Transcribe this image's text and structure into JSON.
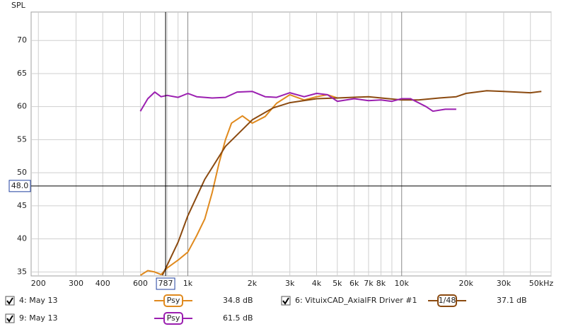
{
  "chart_data": {
    "type": "line",
    "y_label": "SPL",
    "log_x": true,
    "grid": true,
    "xlim": [
      185,
      50000
    ],
    "ylim": [
      34.4,
      74.3
    ],
    "yticks": [
      35,
      40,
      45,
      50,
      55,
      60,
      65,
      70
    ],
    "xticks": [
      200,
      300,
      400,
      600,
      {
        "value": 1000,
        "label": "1k"
      },
      {
        "value": 2000,
        "label": "2k"
      },
      {
        "value": 3000,
        "label": "3k"
      },
      {
        "value": 4000,
        "label": "4k"
      },
      {
        "value": 5000,
        "label": "5k"
      },
      {
        "value": 6000,
        "label": "6k"
      },
      {
        "value": 7000,
        "label": "7k"
      },
      {
        "value": 8000,
        "label": "8k"
      },
      {
        "value": 10000,
        "label": "10k"
      },
      {
        "value": 20000,
        "label": "20k"
      },
      {
        "value": 30000,
        "label": "30k"
      },
      {
        "value": 50000,
        "label": "50kHz"
      }
    ],
    "x_minor_grid": [
      500,
      700,
      800,
      900,
      9000,
      40000
    ],
    "cursor": {
      "x": 787,
      "y": {
        "value": 48,
        "label": "48.0"
      }
    },
    "series": [
      {
        "name": "4: May 13",
        "color": "#e08a1e",
        "smoothing": "Psy",
        "readout": "34.8 dB",
        "x": [
          600,
          650,
          700,
          750,
          800,
          900,
          1000,
          1100,
          1200,
          1300,
          1400,
          1500,
          1600,
          1800,
          2000,
          2300,
          2600,
          3000,
          3500,
          4000,
          4500,
          5000
        ],
        "values": [
          34.5,
          35.2,
          35.0,
          34.6,
          35.6,
          36.8,
          38.0,
          40.5,
          43.0,
          47.0,
          51.5,
          55.0,
          57.5,
          58.6,
          57.5,
          58.5,
          60.5,
          61.8,
          61.0,
          61.5,
          61.8,
          61.3
        ]
      },
      {
        "name": "6: VituixCAD_AxialFR Driver #1",
        "color": "#8b4a10",
        "smoothing": "1/48",
        "readout": "37.1 dB",
        "x": [
          760,
          900,
          1000,
          1200,
          1500,
          2000,
          2500,
          3000,
          4000,
          5000,
          7000,
          10000,
          12000,
          15000,
          18000,
          20000,
          25000,
          30000,
          40000,
          45000
        ],
        "values": [
          34.5,
          39.5,
          43.5,
          49.0,
          54.0,
          58.0,
          59.8,
          60.6,
          61.2,
          61.3,
          61.5,
          61.0,
          61.0,
          61.3,
          61.5,
          62.0,
          62.4,
          62.3,
          62.1,
          62.3
        ]
      },
      {
        "name": "9: May 13",
        "color": "#9b1fb0",
        "smoothing": "Psy",
        "readout": "61.5 dB",
        "x": [
          600,
          650,
          700,
          750,
          800,
          900,
          1000,
          1100,
          1300,
          1500,
          1700,
          2000,
          2300,
          2600,
          3000,
          3500,
          4000,
          4500,
          5000,
          6000,
          7000,
          8000,
          9000,
          10000,
          11000,
          13000,
          14000,
          16000,
          18000
        ],
        "values": [
          59.3,
          61.2,
          62.2,
          61.5,
          61.7,
          61.4,
          62.0,
          61.5,
          61.3,
          61.4,
          62.2,
          62.3,
          61.5,
          61.4,
          62.1,
          61.5,
          62.0,
          61.8,
          60.8,
          61.2,
          60.9,
          61.0,
          60.8,
          61.2,
          61.2,
          60.0,
          59.3,
          59.6,
          59.6
        ]
      }
    ]
  }
}
